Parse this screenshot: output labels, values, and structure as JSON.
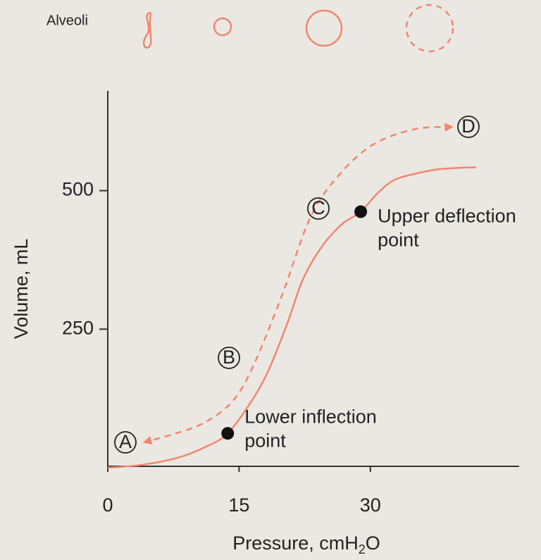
{
  "chart_data": {
    "type": "line",
    "header_label": "Alveoli",
    "y_label": "Volume, mL",
    "x_label": [
      "Pressure, cmH",
      "2",
      "O"
    ],
    "xlim": [
      0,
      47
    ],
    "ylim": [
      0,
      680
    ],
    "xticks": [
      0,
      15,
      30
    ],
    "yticks": [
      250,
      500
    ],
    "series": [
      {
        "color": "#f0876d",
        "dashed": false,
        "x": [
          0,
          3.8,
          8,
          11.5,
          13.7,
          16,
          18.2,
          20.5,
          22.3,
          24.5,
          26.8,
          28.9,
          30.8,
          32.7,
          35,
          37.5,
          40,
          42.1
        ],
        "values": [
          0,
          5,
          18,
          40,
          62,
          110,
          170,
          260,
          340,
          400,
          440,
          462,
          495,
          519,
          530,
          538,
          541,
          542
        ]
      },
      {
        "color": "#f0876d",
        "dashed": true,
        "x": [
          39.3,
          35.1,
          30.3,
          26.3,
          23.1,
          19.9,
          16.6,
          14.2,
          11,
          7.8,
          4.2
        ],
        "values": [
          615,
          611,
          583,
          526,
          450,
          311,
          183,
          119,
          81,
          62,
          46
        ]
      }
    ],
    "points": [
      {
        "x": 13.7,
        "y": 62,
        "label": [
          "Lower inflection",
          "point"
        ]
      },
      {
        "x": 28.9,
        "y": 462,
        "label": [
          "Upper deflection",
          "point"
        ]
      }
    ],
    "stages": [
      "A",
      "B",
      "C",
      "D"
    ]
  }
}
